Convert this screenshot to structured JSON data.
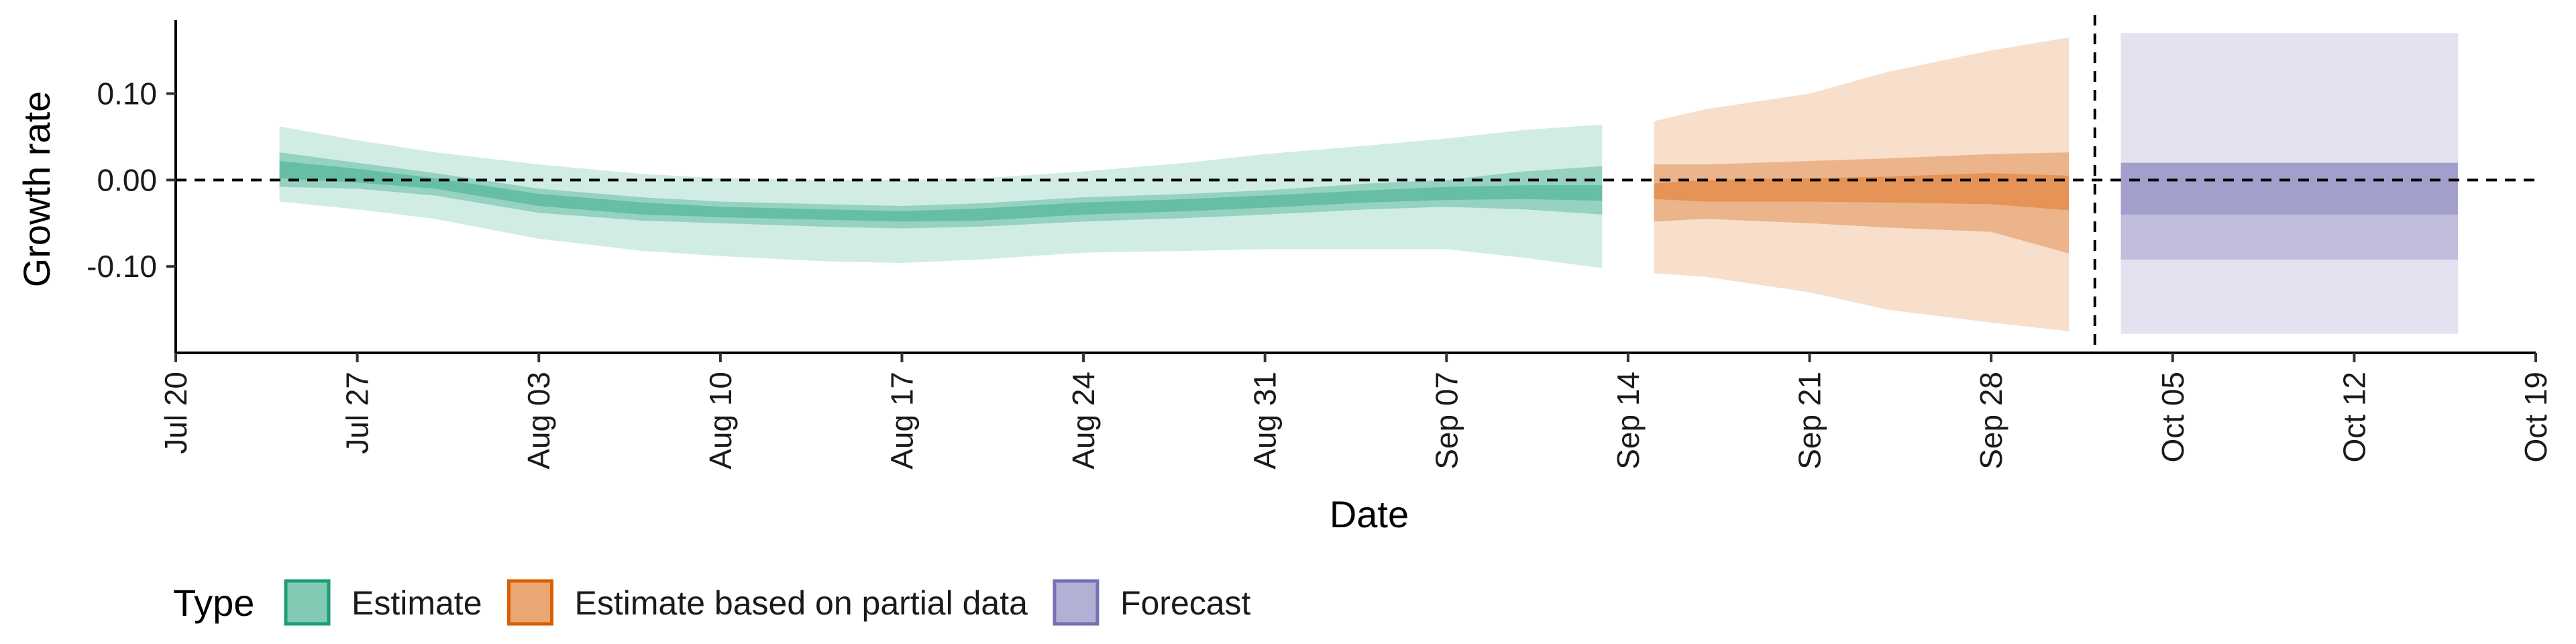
{
  "chart_data": {
    "type": "area",
    "xlabel": "Date",
    "ylabel": "Growth rate",
    "x_range": [
      "2020-07-20",
      "2020-10-19"
    ],
    "ylim": [
      -0.2,
      0.185
    ],
    "x_ticks": [
      {
        "date": "2020-07-20",
        "label": "Jul 20"
      },
      {
        "date": "2020-07-27",
        "label": "Jul 27"
      },
      {
        "date": "2020-08-03",
        "label": "Aug 03"
      },
      {
        "date": "2020-08-10",
        "label": "Aug 10"
      },
      {
        "date": "2020-08-17",
        "label": "Aug 17"
      },
      {
        "date": "2020-08-24",
        "label": "Aug 24"
      },
      {
        "date": "2020-08-31",
        "label": "Aug 31"
      },
      {
        "date": "2020-09-07",
        "label": "Sep 07"
      },
      {
        "date": "2020-09-14",
        "label": "Sep 14"
      },
      {
        "date": "2020-09-21",
        "label": "Sep 21"
      },
      {
        "date": "2020-09-28",
        "label": "Sep 28"
      },
      {
        "date": "2020-10-05",
        "label": "Oct 05"
      },
      {
        "date": "2020-10-12",
        "label": "Oct 12"
      },
      {
        "date": "2020-10-19",
        "label": "Oct 19"
      }
    ],
    "y_ticks": [
      {
        "value": 0.1,
        "label": "0.10"
      },
      {
        "value": 0.0,
        "label": "0.00"
      },
      {
        "value": -0.1,
        "label": "-0.10"
      }
    ],
    "reference_lines": {
      "horizontal_y": 0.0,
      "vertical_date": "2020-10-02"
    },
    "grid": false,
    "legend": {
      "title": "Type",
      "placement": "bottom-left",
      "entries": [
        {
          "label": "Estimate",
          "color": "#1b9e77"
        },
        {
          "label": "Estimate based on partial data",
          "color": "#d95f02"
        },
        {
          "label": "Forecast",
          "color": "#7570b3"
        }
      ]
    },
    "series": [
      {
        "name": "Estimate",
        "color": "#1b9e77",
        "points": [
          [
            "2020-07-24",
            0.062,
            0.032,
            0.022,
            0.012,
            0.002,
            -0.008,
            -0.025
          ],
          [
            "2020-07-27",
            0.046,
            0.02,
            0.013,
            0.005,
            -0.003,
            -0.01,
            -0.034
          ],
          [
            "2020-07-30",
            0.032,
            0.008,
            0.002,
            -0.005,
            -0.01,
            -0.018,
            -0.045
          ],
          [
            "2020-08-03",
            0.018,
            -0.01,
            -0.016,
            -0.023,
            -0.03,
            -0.038,
            -0.068
          ],
          [
            "2020-08-07",
            0.007,
            -0.02,
            -0.026,
            -0.033,
            -0.04,
            -0.047,
            -0.082
          ],
          [
            "2020-08-10",
            0.002,
            -0.025,
            -0.031,
            -0.037,
            -0.043,
            -0.05,
            -0.088
          ],
          [
            "2020-08-14",
            0.0,
            -0.028,
            -0.034,
            -0.04,
            -0.046,
            -0.054,
            -0.094
          ],
          [
            "2020-08-17",
            0.0,
            -0.03,
            -0.036,
            -0.042,
            -0.048,
            -0.056,
            -0.096
          ],
          [
            "2020-08-20",
            0.002,
            -0.027,
            -0.033,
            -0.04,
            -0.047,
            -0.054,
            -0.092
          ],
          [
            "2020-08-24",
            0.01,
            -0.02,
            -0.026,
            -0.033,
            -0.04,
            -0.048,
            -0.084
          ],
          [
            "2020-08-28",
            0.02,
            -0.016,
            -0.022,
            -0.029,
            -0.036,
            -0.044,
            -0.082
          ],
          [
            "2020-08-31",
            0.03,
            -0.012,
            -0.018,
            -0.025,
            -0.032,
            -0.04,
            -0.08
          ],
          [
            "2020-09-04",
            0.04,
            -0.004,
            -0.012,
            -0.019,
            -0.026,
            -0.034,
            -0.08
          ],
          [
            "2020-09-07",
            0.048,
            0.0,
            -0.008,
            -0.015,
            -0.023,
            -0.031,
            -0.08
          ],
          [
            "2020-09-10",
            0.058,
            0.01,
            -0.006,
            -0.013,
            -0.022,
            -0.034,
            -0.09
          ],
          [
            "2020-09-13",
            0.064,
            0.016,
            -0.006,
            -0.014,
            -0.024,
            -0.04,
            -0.102
          ]
        ]
      },
      {
        "name": "Estimate based on partial data",
        "color": "#d95f02",
        "points": [
          [
            "2020-09-15",
            0.068,
            0.018,
            -0.004,
            -0.012,
            -0.022,
            -0.048,
            -0.108
          ],
          [
            "2020-09-17",
            0.082,
            0.018,
            0.0,
            -0.01,
            -0.025,
            -0.045,
            -0.112
          ],
          [
            "2020-09-21",
            0.1,
            0.022,
            0.002,
            -0.01,
            -0.025,
            -0.05,
            -0.13
          ],
          [
            "2020-09-24",
            0.125,
            0.025,
            0.004,
            -0.01,
            -0.026,
            -0.055,
            -0.15
          ],
          [
            "2020-09-28",
            0.15,
            0.03,
            0.008,
            -0.008,
            -0.028,
            -0.06,
            -0.165
          ],
          [
            "2020-10-01",
            0.165,
            0.032,
            0.005,
            -0.012,
            -0.035,
            -0.085,
            -0.175
          ]
        ]
      },
      {
        "name": "Forecast",
        "color": "#7570b3",
        "points": [
          [
            "2020-10-03",
            0.17,
            0.02,
            0.02,
            -0.04,
            -0.04,
            -0.092,
            -0.178
          ],
          [
            "2020-10-16",
            0.17,
            0.02,
            0.02,
            -0.04,
            -0.04,
            -0.092,
            -0.178
          ]
        ]
      }
    ]
  }
}
